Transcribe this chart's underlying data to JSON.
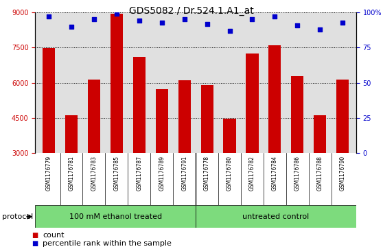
{
  "title": "GDS5082 / Dr.524.1.A1_at",
  "samples": [
    "GSM1176779",
    "GSM1176781",
    "GSM1176783",
    "GSM1176785",
    "GSM1176787",
    "GSM1176789",
    "GSM1176791",
    "GSM1176778",
    "GSM1176780",
    "GSM1176782",
    "GSM1176784",
    "GSM1176786",
    "GSM1176788",
    "GSM1176790"
  ],
  "counts": [
    7490,
    4630,
    6140,
    8950,
    7090,
    5720,
    6120,
    5890,
    4470,
    7250,
    7590,
    6290,
    4630,
    6130
  ],
  "percentiles": [
    97,
    90,
    95,
    99,
    94,
    93,
    95,
    92,
    87,
    95,
    97,
    91,
    88,
    93
  ],
  "group1_count": 7,
  "group1_label": "100 mM ethanol treated",
  "group2_label": "untreated control",
  "protocol_label": "protocol",
  "ylim_left": [
    3000,
    9000
  ],
  "yticks_left": [
    3000,
    4500,
    6000,
    7500,
    9000
  ],
  "yticks_right": [
    0,
    25,
    50,
    75,
    100
  ],
  "ylim_right": [
    0,
    100
  ],
  "bar_color": "#cc0000",
  "dot_color": "#0000cc",
  "bg_color_axis": "#e0e0e0",
  "bg_color_group": "#7ddb7d",
  "legend_count_label": "count",
  "legend_pct_label": "percentile rank within the sample",
  "title_fontsize": 10,
  "tick_fontsize": 7,
  "sample_fontsize": 5.5,
  "group_fontsize": 8,
  "legend_fontsize": 8
}
